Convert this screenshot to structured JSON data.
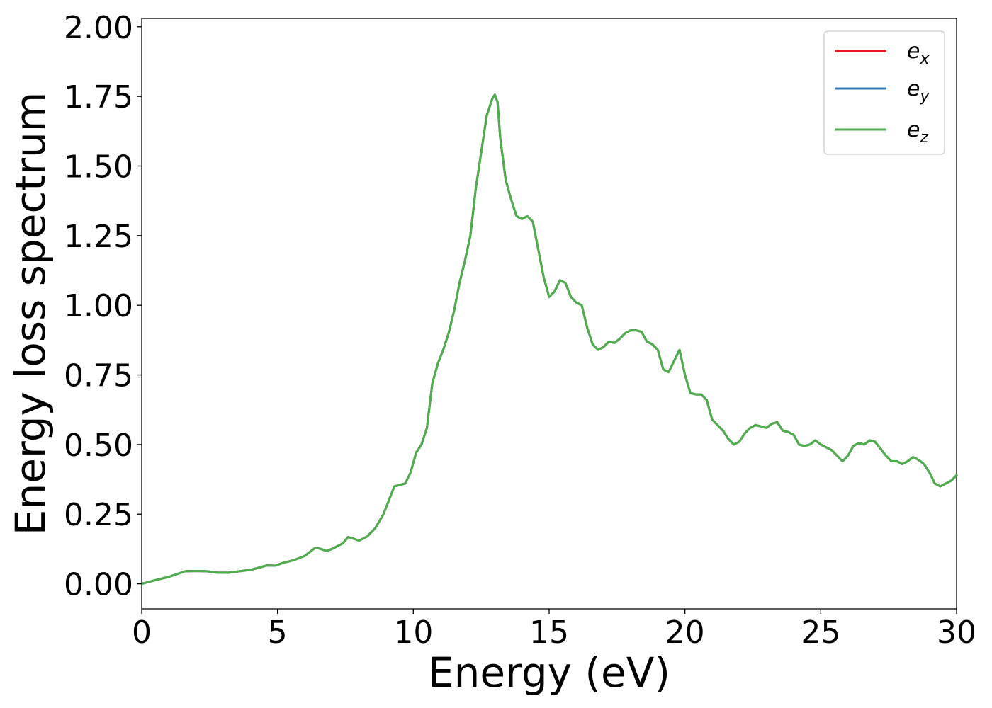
{
  "chart_data": {
    "type": "line",
    "title": "",
    "xlabel": "Energy (eV)",
    "ylabel": "Energy loss spectrum",
    "xlim": [
      0,
      30
    ],
    "ylim": [
      -0.09,
      2.03
    ],
    "xticks": [
      0,
      5,
      10,
      15,
      20,
      25,
      30
    ],
    "xtick_labels": [
      "0",
      "5",
      "10",
      "15",
      "20",
      "25",
      "30"
    ],
    "yticks": [
      0.0,
      0.25,
      0.5,
      0.75,
      1.0,
      1.25,
      1.5,
      1.75,
      2.0
    ],
    "ytick_labels": [
      "0.00",
      "0.25",
      "0.50",
      "0.75",
      "1.00",
      "1.25",
      "1.50",
      "1.75",
      "2.00"
    ],
    "grid": false,
    "legend_position": "top-right",
    "x": [
      0,
      0.5,
      1.0,
      1.3,
      1.6,
      2.0,
      2.4,
      2.8,
      3.2,
      3.6,
      4.0,
      4.4,
      4.6,
      4.9,
      5.2,
      5.6,
      6.0,
      6.2,
      6.4,
      6.6,
      6.8,
      7.0,
      7.2,
      7.4,
      7.6,
      7.8,
      8.0,
      8.3,
      8.6,
      8.9,
      9.1,
      9.3,
      9.5,
      9.7,
      9.9,
      10.1,
      10.3,
      10.5,
      10.7,
      10.9,
      11.1,
      11.3,
      11.5,
      11.7,
      11.9,
      12.1,
      12.3,
      12.5,
      12.7,
      12.9,
      13.0,
      13.1,
      13.2,
      13.4,
      13.6,
      13.8,
      14.0,
      14.2,
      14.4,
      14.6,
      14.8,
      15.0,
      15.2,
      15.4,
      15.6,
      15.8,
      16.0,
      16.2,
      16.4,
      16.6,
      16.8,
      17.0,
      17.2,
      17.4,
      17.6,
      17.8,
      18.0,
      18.2,
      18.4,
      18.6,
      18.8,
      19.0,
      19.2,
      19.4,
      19.6,
      19.8,
      20.0,
      20.2,
      20.4,
      20.6,
      20.8,
      21.0,
      21.2,
      21.4,
      21.6,
      21.8,
      22.0,
      22.2,
      22.4,
      22.6,
      22.8,
      23.0,
      23.2,
      23.4,
      23.6,
      23.8,
      24.0,
      24.2,
      24.4,
      24.6,
      24.8,
      25.0,
      25.2,
      25.4,
      25.6,
      25.8,
      26.0,
      26.2,
      26.4,
      26.6,
      26.8,
      27.0,
      27.2,
      27.4,
      27.6,
      27.8,
      28.0,
      28.2,
      28.4,
      28.6,
      28.8,
      29.0,
      29.2,
      29.4,
      29.6,
      29.8,
      30.0
    ],
    "y": [
      0.0,
      0.013,
      0.025,
      0.035,
      0.045,
      0.046,
      0.045,
      0.04,
      0.04,
      0.045,
      0.05,
      0.06,
      0.066,
      0.065,
      0.075,
      0.085,
      0.1,
      0.115,
      0.13,
      0.125,
      0.118,
      0.125,
      0.135,
      0.145,
      0.168,
      0.162,
      0.155,
      0.17,
      0.2,
      0.25,
      0.3,
      0.35,
      0.355,
      0.36,
      0.4,
      0.47,
      0.5,
      0.56,
      0.72,
      0.79,
      0.84,
      0.9,
      0.98,
      1.08,
      1.16,
      1.25,
      1.42,
      1.55,
      1.68,
      1.74,
      1.756,
      1.73,
      1.6,
      1.45,
      1.38,
      1.32,
      1.31,
      1.32,
      1.3,
      1.2,
      1.1,
      1.03,
      1.05,
      1.09,
      1.08,
      1.03,
      1.01,
      1.0,
      0.92,
      0.86,
      0.84,
      0.85,
      0.87,
      0.865,
      0.88,
      0.9,
      0.91,
      0.91,
      0.905,
      0.87,
      0.86,
      0.84,
      0.77,
      0.76,
      0.8,
      0.84,
      0.75,
      0.685,
      0.68,
      0.68,
      0.66,
      0.59,
      0.57,
      0.55,
      0.52,
      0.5,
      0.51,
      0.54,
      0.56,
      0.57,
      0.565,
      0.56,
      0.575,
      0.58,
      0.55,
      0.545,
      0.535,
      0.5,
      0.495,
      0.5,
      0.515,
      0.5,
      0.49,
      0.48,
      0.46,
      0.44,
      0.46,
      0.495,
      0.505,
      0.5,
      0.515,
      0.51,
      0.485,
      0.46,
      0.44,
      0.44,
      0.43,
      0.44,
      0.455,
      0.445,
      0.43,
      0.4,
      0.36,
      0.35,
      0.36,
      0.37,
      0.39
    ],
    "series": [
      {
        "name": "e_x",
        "legend_base": "e",
        "legend_sub": "x",
        "color": "#e41a1c"
      },
      {
        "name": "e_y",
        "legend_base": "e",
        "legend_sub": "y",
        "color": "#377eb8"
      },
      {
        "name": "e_z",
        "legend_base": "e",
        "legend_sub": "z",
        "color": "#4daf4a"
      }
    ]
  }
}
